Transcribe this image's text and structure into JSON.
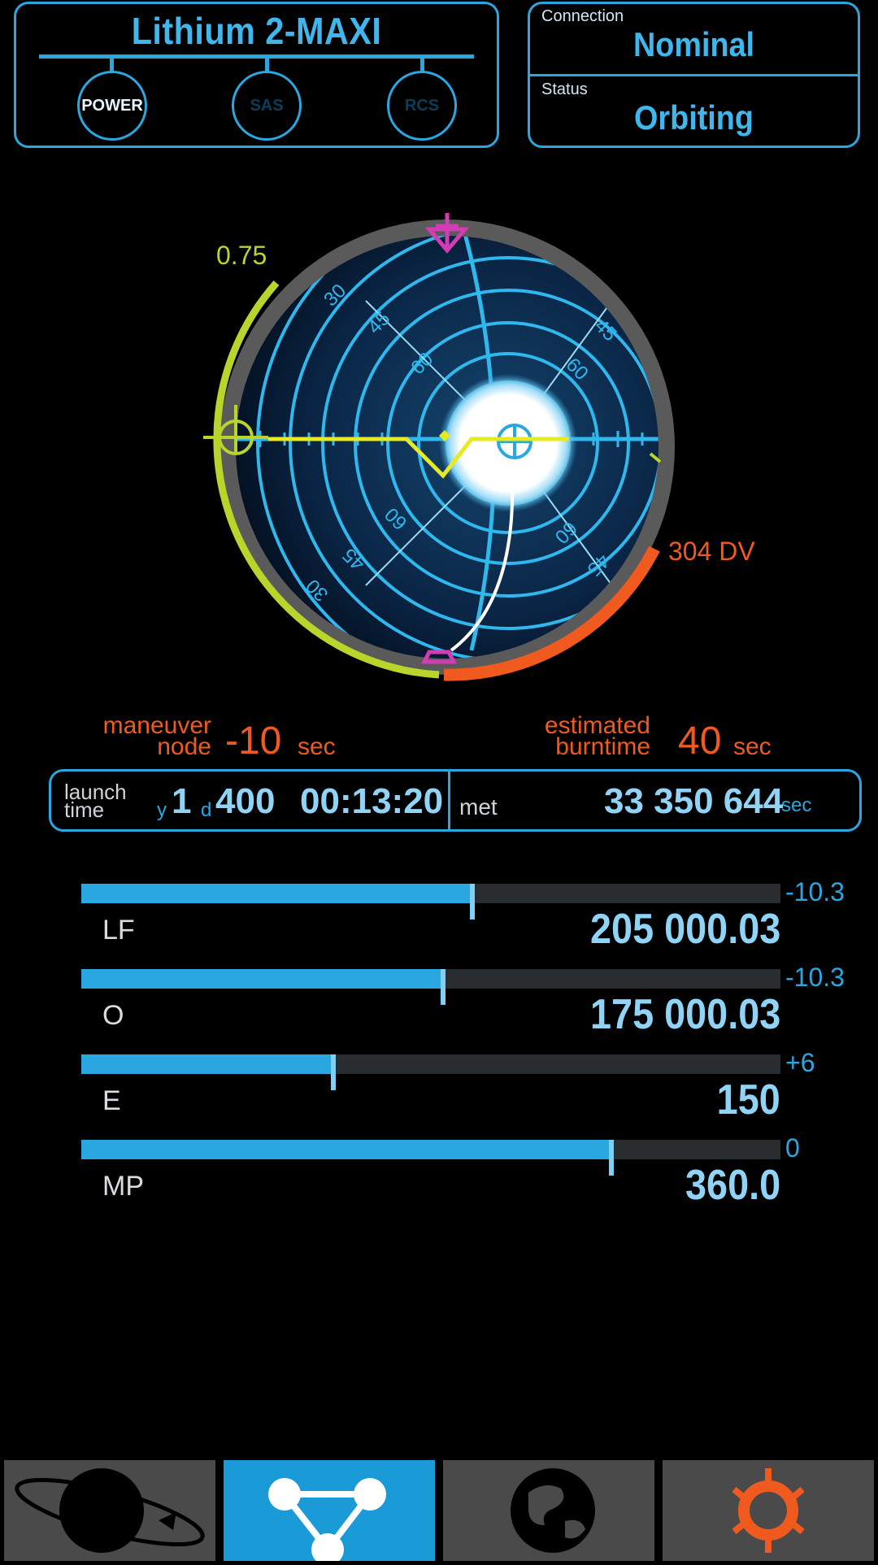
{
  "vessel": {
    "name": "Lithium 2-MAXI",
    "buttons": [
      {
        "label": "POWER",
        "state": "on"
      },
      {
        "label": "SAS",
        "state": "off"
      },
      {
        "label": "RCS",
        "state": "off"
      }
    ]
  },
  "status_panel": {
    "connection_label": "Connection",
    "connection_value": "Nominal",
    "status_label": "Status",
    "status_value": "Orbiting"
  },
  "navball": {
    "throttle_value": "0.75",
    "dv_label": "304 DV",
    "throttle_fraction": 0.75,
    "ring_labels": {
      "n30": "30",
      "n45": "45",
      "n60": "60"
    },
    "colors": {
      "throttle": "#b9d42a",
      "dv": "#f05a1e",
      "marker": "#d23cb4",
      "ball": "#0a2240"
    }
  },
  "maneuver": {
    "node_label_line1": "maneuver",
    "node_label_line2": "node",
    "node_value": "-10",
    "node_unit": "sec",
    "burn_label_line1": "estimated",
    "burn_label_line2": "burntime",
    "burn_value": "40",
    "burn_unit": "sec"
  },
  "times": {
    "launch_label_line1": "launch",
    "launch_label_line2": "time",
    "y_prefix": "y",
    "y_value": "1",
    "d_prefix": "d",
    "d_value": "400",
    "clock": "00:13:20",
    "met_label": "met",
    "met_value": "33 350 644",
    "met_unit": "sec"
  },
  "resources": [
    {
      "label": "LF",
      "value": "205 000.03",
      "rate": "-10.3",
      "fill": 0.56,
      "marker": 0.559
    },
    {
      "label": "O",
      "value": "175 000.03",
      "rate": "-10.3",
      "fill": 0.515,
      "marker": 0.518
    },
    {
      "label": "E",
      "value": "150",
      "rate": "+6",
      "fill": 0.36,
      "marker": 0.36
    },
    {
      "label": "MP",
      "value": "360.0",
      "rate": "0",
      "fill": 0.758,
      "marker": 0.758
    }
  ],
  "tabs": [
    {
      "name": "orbit",
      "icon": "planet-orbit-icon",
      "active": false
    },
    {
      "name": "maneuver",
      "icon": "node-graph-icon",
      "active": true
    },
    {
      "name": "surface",
      "icon": "globe-icon",
      "active": false
    },
    {
      "name": "settings",
      "icon": "gear-icon",
      "active": false
    }
  ],
  "colors": {
    "accent": "#2aa6e0",
    "warning": "#f05a1e",
    "throttle": "#b9d42a",
    "background": "#000000"
  }
}
